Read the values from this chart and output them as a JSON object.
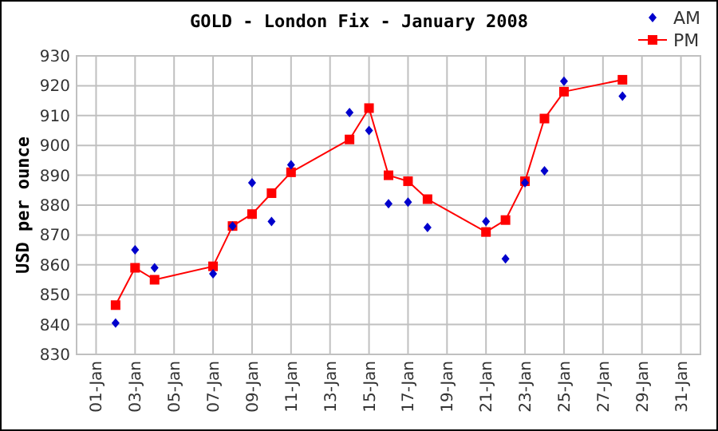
{
  "chart_data": {
    "type": "line",
    "title": "GOLD - London Fix - January 2008",
    "ylabel": "USD per ounce",
    "xlim": [
      "2007-12-31",
      "2008-02-01"
    ],
    "xticks": [
      {
        "value": "2008-01-01",
        "label": "01-Jan"
      },
      {
        "value": "2008-01-03",
        "label": "03-Jan"
      },
      {
        "value": "2008-01-05",
        "label": "05-Jan"
      },
      {
        "value": "2008-01-07",
        "label": "07-Jan"
      },
      {
        "value": "2008-01-09",
        "label": "09-Jan"
      },
      {
        "value": "2008-01-11",
        "label": "11-Jan"
      },
      {
        "value": "2008-01-13",
        "label": "13-Jan"
      },
      {
        "value": "2008-01-15",
        "label": "15-Jan"
      },
      {
        "value": "2008-01-17",
        "label": "17-Jan"
      },
      {
        "value": "2008-01-19",
        "label": "19-Jan"
      },
      {
        "value": "2008-01-21",
        "label": "21-Jan"
      },
      {
        "value": "2008-01-23",
        "label": "23-Jan"
      },
      {
        "value": "2008-01-25",
        "label": "25-Jan"
      },
      {
        "value": "2008-01-27",
        "label": "27-Jan"
      },
      {
        "value": "2008-01-29",
        "label": "29-Jan"
      },
      {
        "value": "2008-01-31",
        "label": "31-Jan"
      }
    ],
    "ylim": [
      830,
      930
    ],
    "yticks": [
      830,
      840,
      850,
      860,
      870,
      880,
      890,
      900,
      910,
      920,
      930
    ],
    "x": [
      "2008-01-02",
      "2008-01-03",
      "2008-01-04",
      "2008-01-07",
      "2008-01-08",
      "2008-01-09",
      "2008-01-10",
      "2008-01-11",
      "2008-01-14",
      "2008-01-15",
      "2008-01-16",
      "2008-01-17",
      "2008-01-18",
      "2008-01-21",
      "2008-01-22",
      "2008-01-23",
      "2008-01-24",
      "2008-01-25",
      "2008-01-28"
    ],
    "series": [
      {
        "name": "AM",
        "type": "scatter",
        "marker": "diamond",
        "color": "#0000cc",
        "values": [
          840.5,
          865,
          859,
          857,
          873,
          887.5,
          874.5,
          893.5,
          911,
          905,
          880.5,
          881,
          872.5,
          874.5,
          862,
          887.5,
          891.5,
          921.5,
          916.5
        ]
      },
      {
        "name": "PM",
        "type": "line",
        "marker": "square",
        "line_style": "solid",
        "color": "#ff0000",
        "values": [
          846.5,
          859,
          855,
          859.5,
          873,
          877,
          884,
          891,
          902,
          912.5,
          890,
          888,
          882,
          871,
          875,
          888,
          909,
          918,
          922
        ]
      }
    ],
    "grid": true,
    "legend": "top right"
  }
}
